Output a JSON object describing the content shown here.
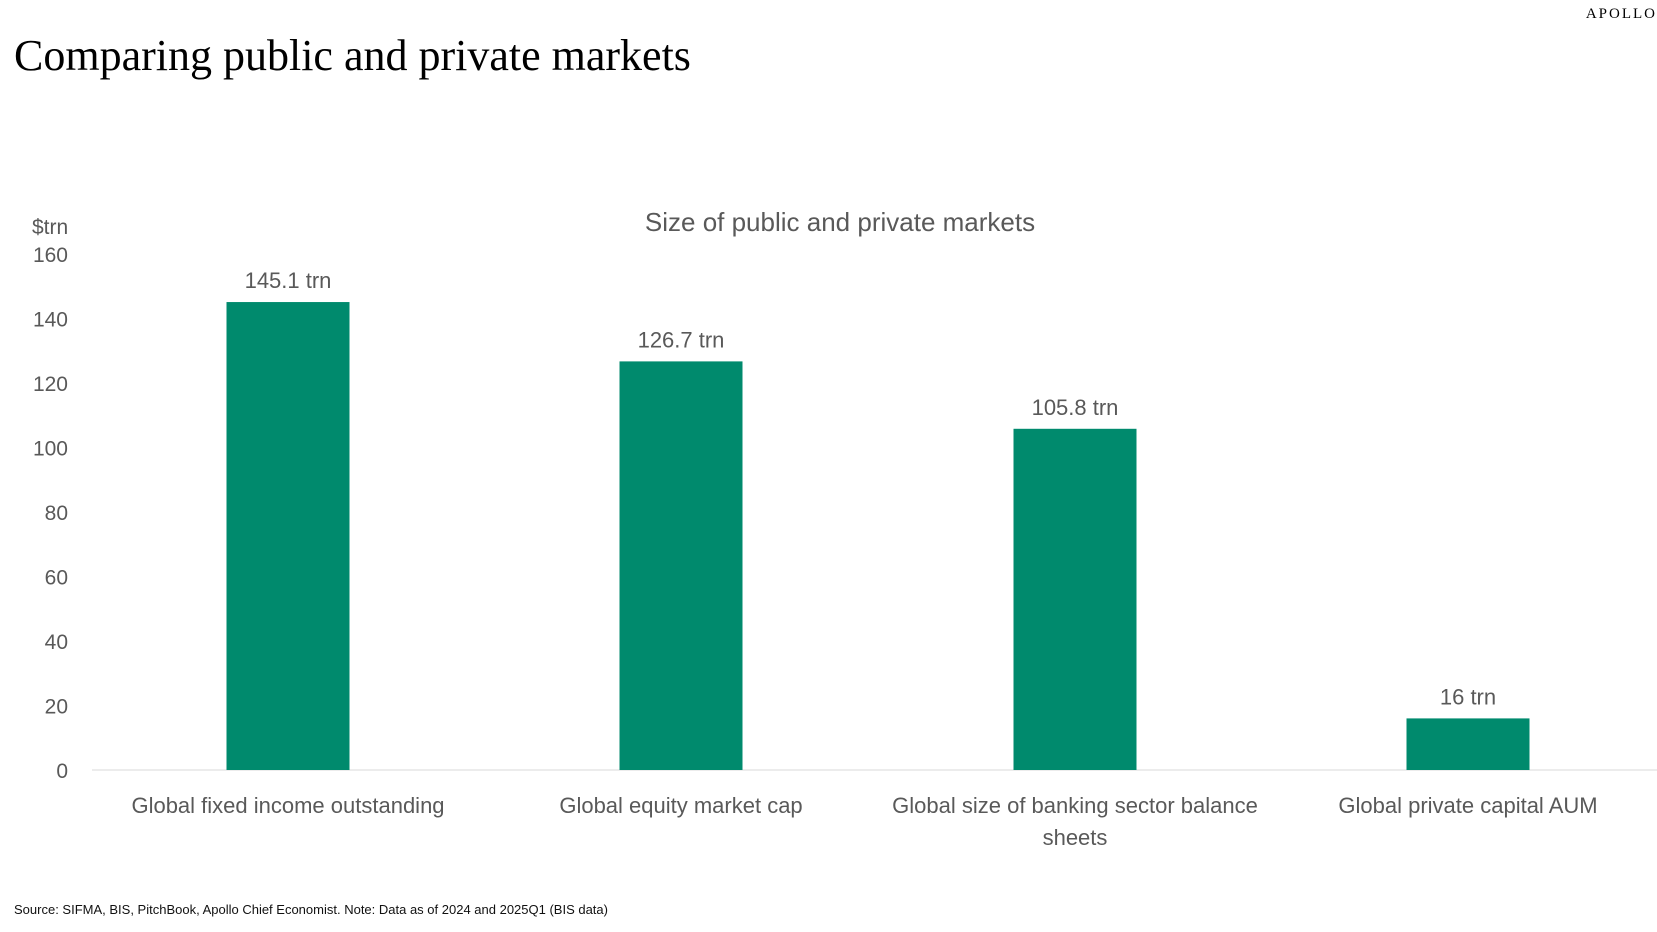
{
  "brand": "APOLLO",
  "page_title": "Comparing public and private markets",
  "source_note": "Source: SIFMA, BIS, PitchBook, Apollo Chief Economist. Note: Data as of 2024 and 2025Q1 (BIS data)",
  "colors": {
    "bar": "#008A6D",
    "axis_text": "#595959",
    "title_text": "#595959",
    "baseline": "#D9D9D9"
  },
  "chart_data": {
    "type": "bar",
    "title": "Size of public and private markets",
    "ylabel": "$trn",
    "xlabel": "",
    "ylim": [
      0,
      160
    ],
    "yticks": [
      0,
      20,
      40,
      60,
      80,
      100,
      120,
      140,
      160
    ],
    "grid": false,
    "legend": "none",
    "categories": [
      [
        "Global fixed income outstanding"
      ],
      [
        "Global equity market cap"
      ],
      [
        "Global size of banking sector balance",
        "sheets"
      ],
      [
        "Global private capital AUM"
      ]
    ],
    "values": [
      145.1,
      126.7,
      105.8,
      16
    ],
    "data_labels": [
      "145.1 trn",
      "126.7 trn",
      "105.8 trn",
      "16 trn"
    ]
  }
}
